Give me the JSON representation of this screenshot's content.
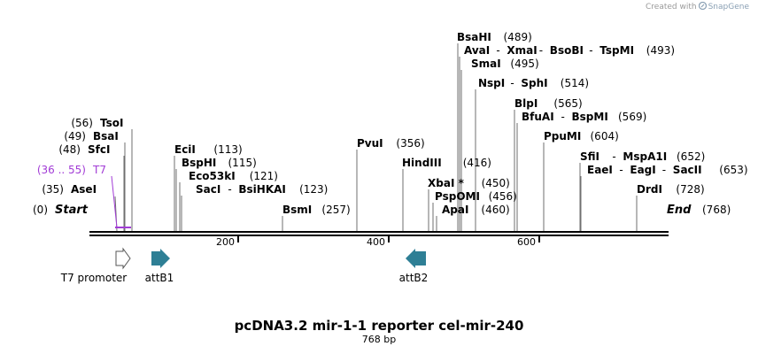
{
  "credit": {
    "prefix": "Created with",
    "brand": "SnapGene"
  },
  "title": "pcDNA3.2 mir-1-1 reporter cel-mir-240",
  "subtitle": "768 bp",
  "length": 768,
  "ticks": [
    "200",
    "400",
    "600"
  ],
  "colors": {
    "primer": "#a23cd6",
    "feature": "#2e7f95"
  },
  "start_label": {
    "pos": "(0)",
    "name": "Start"
  },
  "end_label": {
    "name": "End",
    "pos": "(768)"
  },
  "sites": [
    {
      "id": "ase",
      "parts": [
        "AseI"
      ],
      "pos": "(35)"
    },
    {
      "id": "sfc",
      "parts": [
        "SfcI"
      ],
      "pos": "(48)"
    },
    {
      "id": "bsa",
      "parts": [
        "BsaI"
      ],
      "pos": "(49)"
    },
    {
      "id": "tso",
      "parts": [
        "TsoI"
      ],
      "pos": "(56)"
    },
    {
      "id": "eci",
      "parts": [
        "EciI"
      ],
      "pos": "(113)"
    },
    {
      "id": "bsphi",
      "parts": [
        "BspHI"
      ],
      "pos": "(115)"
    },
    {
      "id": "eco53",
      "parts": [
        "Eco53kI"
      ],
      "pos": "(121)"
    },
    {
      "id": "sac",
      "parts": [
        "SacI",
        "BsiHKAI"
      ],
      "pos": "(123)"
    },
    {
      "id": "bsm",
      "parts": [
        "BsmI"
      ],
      "pos": "(257)"
    },
    {
      "id": "pvu",
      "parts": [
        "PvuI"
      ],
      "pos": "(356)"
    },
    {
      "id": "hind",
      "parts": [
        "HindIII"
      ],
      "pos": "(416)"
    },
    {
      "id": "xba",
      "parts": [
        "XbaI *"
      ],
      "pos": "(450)"
    },
    {
      "id": "pspom",
      "parts": [
        "PspOMI"
      ],
      "pos": "(456)"
    },
    {
      "id": "apa",
      "parts": [
        "ApaI"
      ],
      "pos": "(460)"
    },
    {
      "id": "bsahi",
      "parts": [
        "BsaHI"
      ],
      "pos": "(489)"
    },
    {
      "id": "ava",
      "parts": [
        "AvaI",
        "XmaI",
        "BsoBI",
        "TspMI"
      ],
      "pos": "(493)"
    },
    {
      "id": "sma",
      "parts": [
        "SmaI"
      ],
      "pos": "(495)"
    },
    {
      "id": "nsp",
      "parts": [
        "NspI",
        "SphI"
      ],
      "pos": "(514)"
    },
    {
      "id": "blp",
      "parts": [
        "BlpI"
      ],
      "pos": "(565)"
    },
    {
      "id": "bfua",
      "parts": [
        "BfuAI",
        "BspMI"
      ],
      "pos": "(569)"
    },
    {
      "id": "ppum",
      "parts": [
        "PpuMI"
      ],
      "pos": "(604)"
    },
    {
      "id": "sfi",
      "parts": [
        "SfiI",
        "MspA1I"
      ],
      "pos": "(652)"
    },
    {
      "id": "eae",
      "parts": [
        "EaeI",
        "EagI",
        "SacII"
      ],
      "pos": "(653)"
    },
    {
      "id": "drd",
      "parts": [
        "DrdI"
      ],
      "pos": "(728)"
    }
  ],
  "primer": {
    "name": "T7",
    "pos": "(36 .. 55)"
  },
  "features": [
    {
      "id": "t7-promoter",
      "name": "T7 promoter",
      "direction": "right",
      "filled": false
    },
    {
      "id": "attb1",
      "name": "attB1",
      "direction": "right",
      "filled": true
    },
    {
      "id": "attb2",
      "name": "attB2",
      "direction": "left",
      "filled": true
    }
  ]
}
